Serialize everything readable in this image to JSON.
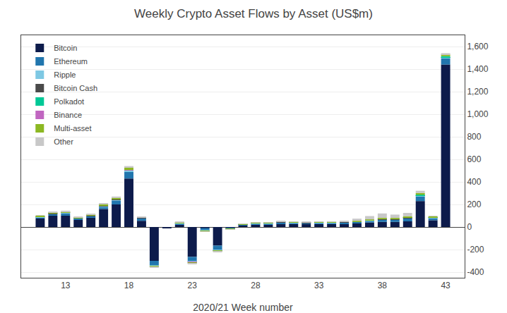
{
  "chart_data": {
    "type": "bar",
    "stacked": true,
    "title": "Weekly Crypto Asset Flows by Asset (US$m)",
    "xlabel": "2020/21 Week number",
    "x": [
      11,
      12,
      13,
      14,
      15,
      16,
      17,
      18,
      19,
      20,
      21,
      22,
      23,
      24,
      25,
      26,
      27,
      28,
      29,
      30,
      31,
      32,
      33,
      34,
      35,
      36,
      37,
      38,
      39,
      40,
      41,
      42,
      43
    ],
    "xlim": [
      9.5,
      44.5
    ],
    "xticks": [
      13,
      18,
      23,
      28,
      33,
      38,
      43
    ],
    "ylim": [
      -450,
      1700
    ],
    "yticks": [
      -400,
      -200,
      0,
      200,
      400,
      600,
      800,
      {
        "value": 1000,
        "label": "1,000"
      },
      {
        "value": 1200,
        "label": "1,200"
      },
      {
        "value": 1400,
        "label": "1,400"
      },
      {
        "value": 1600,
        "label": "1,600"
      }
    ],
    "grid": true,
    "legend": "upper left",
    "series": [
      {
        "name": "Bitcoin",
        "color": "#0d1b4b",
        "values": [
          75,
          100,
          100,
          65,
          85,
          160,
          200,
          430,
          55,
          -300,
          -10,
          20,
          -265,
          -10,
          -165,
          -10,
          15,
          20,
          20,
          30,
          25,
          25,
          25,
          25,
          30,
          35,
          40,
          45,
          45,
          50,
          230,
          60,
          1440
        ]
      },
      {
        "name": "Ethereum",
        "color": "#2176ae",
        "values": [
          10,
          15,
          20,
          10,
          10,
          20,
          35,
          60,
          20,
          -40,
          0,
          10,
          -40,
          -20,
          -40,
          -5,
          5,
          10,
          10,
          10,
          10,
          10,
          10,
          10,
          10,
          10,
          15,
          20,
          20,
          25,
          40,
          20,
          55
        ]
      },
      {
        "name": "Ripple",
        "color": "#7ec8e3",
        "values": [
          3,
          3,
          5,
          3,
          3,
          5,
          8,
          10,
          5,
          -5,
          0,
          3,
          -5,
          -3,
          -3,
          -2,
          2,
          3,
          3,
          3,
          3,
          2,
          3,
          3,
          3,
          3,
          3,
          3,
          3,
          5,
          8,
          3,
          8
        ]
      },
      {
        "name": "Bitcoin Cash",
        "color": "#4a4a4a",
        "values": [
          2,
          2,
          2,
          2,
          2,
          2,
          2,
          4,
          2,
          -2,
          0,
          2,
          -2,
          -1,
          -1,
          -1,
          1,
          1,
          1,
          1,
          1,
          1,
          1,
          1,
          1,
          1,
          1,
          1,
          1,
          2,
          3,
          1,
          3
        ]
      },
      {
        "name": "Polkadot",
        "color": "#00c896",
        "values": [
          0,
          0,
          0,
          0,
          0,
          0,
          0,
          0,
          0,
          0,
          0,
          0,
          0,
          0,
          0,
          0,
          0,
          0,
          0,
          0,
          0,
          0,
          0,
          0,
          0,
          0,
          0,
          3,
          3,
          3,
          5,
          2,
          8
        ]
      },
      {
        "name": "Binance",
        "color": "#c066c0",
        "values": [
          0,
          0,
          0,
          0,
          0,
          0,
          0,
          1,
          0,
          -1,
          0,
          0,
          -1,
          0,
          0,
          0,
          0,
          0,
          0,
          0,
          0,
          0,
          0,
          0,
          0,
          0,
          0,
          0,
          0,
          0,
          0,
          0,
          0
        ]
      },
      {
        "name": "Multi-asset",
        "color": "#8cb822",
        "values": [
          10,
          8,
          10,
          6,
          8,
          15,
          15,
          20,
          5,
          -8,
          0,
          5,
          -10,
          -5,
          -8,
          -3,
          3,
          5,
          5,
          5,
          5,
          4,
          5,
          5,
          5,
          5,
          8,
          8,
          8,
          10,
          15,
          8,
          15
        ]
      },
      {
        "name": "Other",
        "color": "#c8c8c8",
        "values": [
          5,
          5,
          8,
          4,
          5,
          10,
          10,
          15,
          3,
          -5,
          0,
          5,
          -5,
          -4,
          -5,
          -2,
          2,
          4,
          4,
          4,
          4,
          4,
          4,
          4,
          4,
          20,
          30,
          40,
          30,
          30,
          20,
          5,
          12
        ]
      }
    ]
  }
}
